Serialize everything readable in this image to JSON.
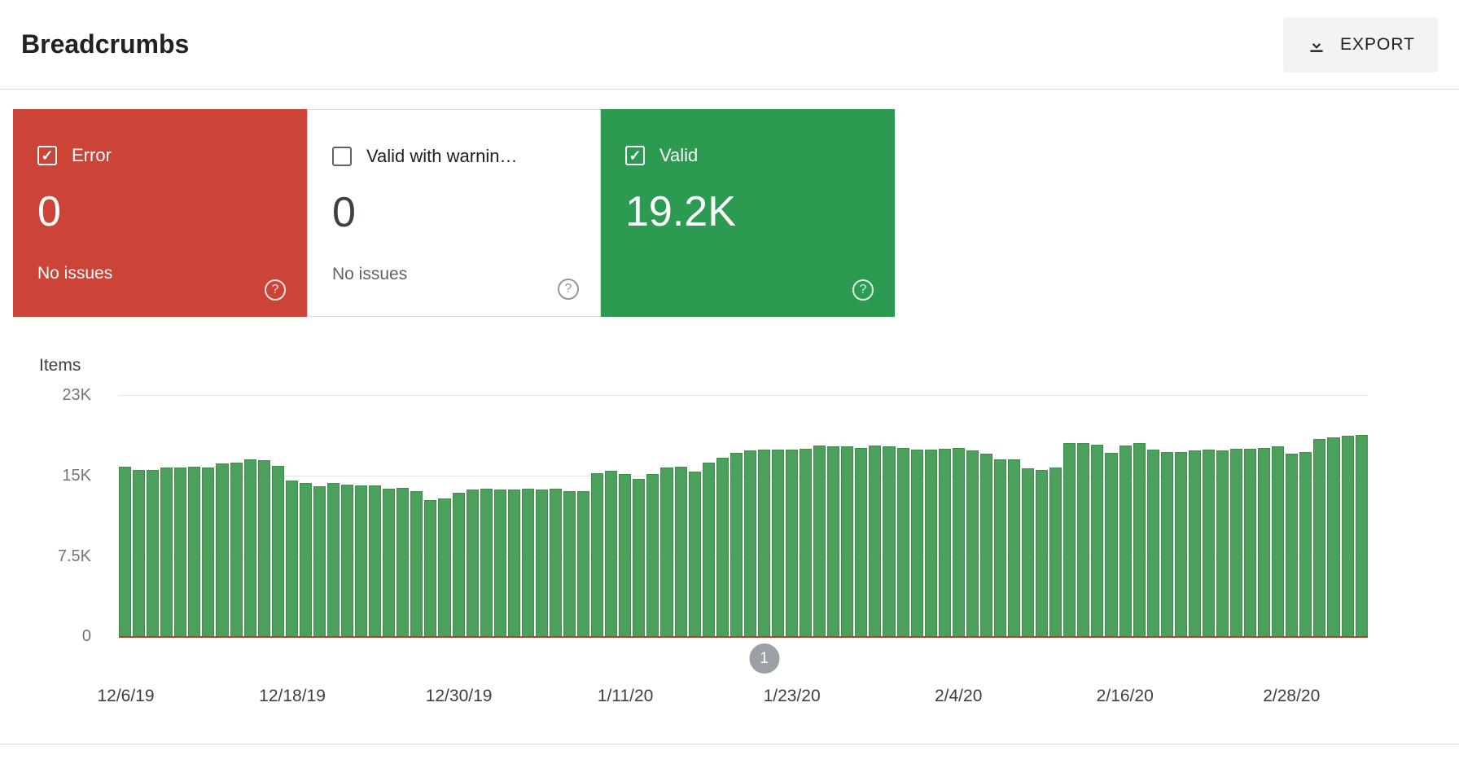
{
  "header": {
    "title": "Breadcrumbs",
    "export_label": "EXPORT"
  },
  "cards": [
    {
      "label": "Error",
      "value": "0",
      "sub": "No issues",
      "state": "checked",
      "bg": "#cb4437",
      "text": "#ffffff"
    },
    {
      "label": "Valid with warnin…",
      "value": "0",
      "sub": "No issues",
      "state": "unchecked",
      "bg": "#ffffff",
      "text": "#202124"
    },
    {
      "label": "Valid",
      "value": "19.2K",
      "state": "checked",
      "bg": "#2d9a52",
      "text": "#ffffff"
    }
  ],
  "chart_data": {
    "type": "bar",
    "ylabel": "Items",
    "ylim": [
      0,
      23000
    ],
    "ytick_labels": [
      "23K",
      "15K",
      "7.5K",
      "0"
    ],
    "grid": "on",
    "legend": "none",
    "x_ticks": [
      {
        "label": "12/6/19",
        "index": 0
      },
      {
        "label": "12/18/19",
        "index": 12
      },
      {
        "label": "12/30/19",
        "index": 24
      },
      {
        "label": "1/11/20",
        "index": 36
      },
      {
        "label": "1/23/20",
        "index": 48
      },
      {
        "label": "2/4/20",
        "index": 60
      },
      {
        "label": "2/16/20",
        "index": 72
      },
      {
        "label": "2/28/20",
        "index": 84
      }
    ],
    "series": [
      {
        "name": "Valid",
        "values": [
          16200,
          15900,
          15900,
          16100,
          16100,
          16200,
          16100,
          16500,
          16600,
          16900,
          16800,
          16300,
          14900,
          14600,
          14300,
          14600,
          14500,
          14400,
          14400,
          14100,
          14200,
          13900,
          13000,
          13200,
          13700,
          14000,
          14100,
          14000,
          14000,
          14100,
          14000,
          14100,
          13900,
          13900,
          15600,
          15800,
          15500,
          15000,
          15500,
          16100,
          16200,
          15700,
          16600,
          17000,
          17500,
          17700,
          17800,
          17800,
          17800,
          17900,
          18200,
          18100,
          18100,
          18000,
          18200,
          18100,
          18000,
          17800,
          17800,
          17900,
          18000,
          17700,
          17400,
          16900,
          16900,
          16000,
          15900,
          16100,
          18400,
          18400,
          18300,
          17500,
          18200,
          18400,
          17800,
          17600,
          17600,
          17700,
          17800,
          17700,
          17900,
          17900,
          18000,
          18100,
          17400,
          17600,
          18800,
          19000,
          19100,
          19200
        ]
      }
    ],
    "marker": {
      "label": "1",
      "index": 46
    },
    "bar_color": "#4ba05b",
    "bar_border_color": "#3f8d4b",
    "zero_line_color": "#c0392b"
  },
  "colors": {
    "accent_red": "#cb4437",
    "accent_green": "#2d9a52",
    "divider": "#dadce0"
  }
}
